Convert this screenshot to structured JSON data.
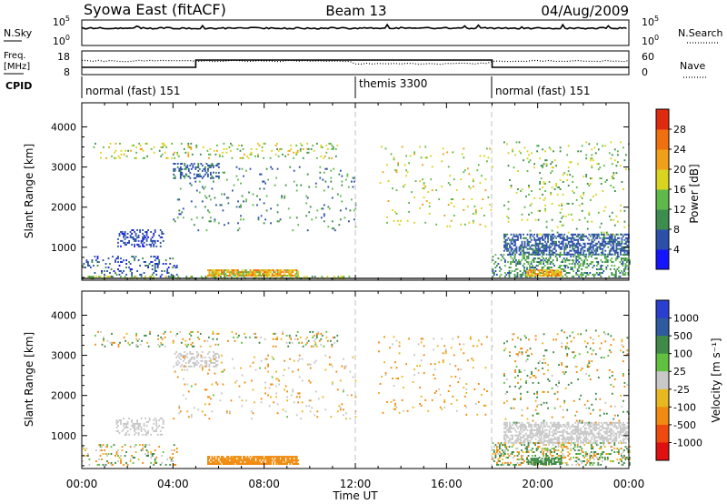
{
  "header": {
    "station": "Syowa East (fitACF)",
    "beam": "Beam 13",
    "date": "04/Aug/2009"
  },
  "nsky_panel": {
    "left_label": "N.Sky",
    "right_label": "N.Search",
    "tick_high": "10^5",
    "tick_low": "10^0",
    "tick_high_base": "10",
    "tick_high_exp": "5",
    "tick_low_base": "10",
    "tick_low_exp": "0"
  },
  "freq_panel": {
    "left_label": "Freq.",
    "unit_label": "[MHz]",
    "right_label": "Nave",
    "left_ticks": [
      "18",
      "8"
    ],
    "right_ticks": [
      "60",
      "0"
    ],
    "cpid_label": "CPID"
  },
  "cpid": [
    {
      "label": "normal (fast) 151",
      "start_hr": 0
    },
    {
      "label": "themis 3300",
      "start_hr": 12
    },
    {
      "label": "normal (fast) 151",
      "start_hr": 18
    }
  ],
  "axes": {
    "ylabel": "Slant Range [km]",
    "yticks": [
      "1000",
      "2000",
      "3000",
      "4000"
    ],
    "xticks": [
      "00:00",
      "04:00",
      "08:00",
      "12:00",
      "16:00",
      "20:00",
      "00:00"
    ],
    "xlabel": "Time UT"
  },
  "power_scale": {
    "label": "Power [dB]",
    "ticks": [
      "4",
      "8",
      "12",
      "16",
      "20",
      "24",
      "28"
    ],
    "colors": [
      "#1414ff",
      "#2c50a8",
      "#3d8d4e",
      "#5fb94a",
      "#d9d420",
      "#f0a018",
      "#f07010",
      "#e02a10"
    ]
  },
  "velocity_scale": {
    "label": "Velocity [m s⁻¹]",
    "ticks": [
      "1000",
      "500",
      "100",
      "25",
      "-25",
      "-100",
      "-500",
      "-1000"
    ],
    "colors": [
      "#2a3fd0",
      "#2e5aa0",
      "#3f8a48",
      "#62c040",
      "#c8c8c8",
      "#e8b820",
      "#f08a10",
      "#ee4a10",
      "#e01010"
    ]
  },
  "chart_data": [
    {
      "type": "heatmap",
      "title": "Power",
      "xlabel": "Time UT",
      "ylabel": "Slant Range [km]",
      "xlim": [
        0,
        24
      ],
      "ylim": [
        180,
        4600
      ],
      "colorbar_label": "Power [dB]",
      "colorbar_range": [
        0,
        32
      ],
      "regions": [
        {
          "t0": 0.0,
          "t1": 4.2,
          "r0": 250,
          "r1": 750,
          "v0": 3,
          "v1": 10,
          "density": 0.18
        },
        {
          "t0": 1.5,
          "t1": 3.6,
          "r0": 1000,
          "r1": 1450,
          "v0": 3,
          "v1": 8,
          "density": 0.3
        },
        {
          "t0": 5.5,
          "t1": 9.5,
          "r0": 270,
          "r1": 430,
          "v0": 14,
          "v1": 28,
          "density": 0.85
        },
        {
          "t0": 4.0,
          "t1": 6.0,
          "r0": 2700,
          "r1": 3100,
          "v0": 4,
          "v1": 9,
          "density": 0.35
        },
        {
          "t0": 0.5,
          "t1": 11.2,
          "r0": 3200,
          "r1": 3600,
          "v0": 10,
          "v1": 22,
          "density": 0.12
        },
        {
          "t0": 4.0,
          "t1": 12.0,
          "r0": 1400,
          "r1": 3000,
          "v0": 4,
          "v1": 16,
          "density": 0.04
        },
        {
          "t0": 0.0,
          "t1": 12.0,
          "r0": 200,
          "r1": 260,
          "v0": 10,
          "v1": 20,
          "density": 0.3
        },
        {
          "t0": 13.0,
          "t1": 18.0,
          "r0": 1500,
          "r1": 3500,
          "v0": 12,
          "v1": 22,
          "density": 0.03
        },
        {
          "t0": 18.5,
          "t1": 24.0,
          "r0": 800,
          "r1": 1300,
          "v0": 4,
          "v1": 9,
          "density": 0.55
        },
        {
          "t0": 18.0,
          "t1": 24.0,
          "r0": 250,
          "r1": 800,
          "v0": 6,
          "v1": 16,
          "density": 0.3
        },
        {
          "t0": 19.5,
          "t1": 21.0,
          "r0": 270,
          "r1": 450,
          "v0": 16,
          "v1": 28,
          "density": 0.8
        },
        {
          "t0": 18.5,
          "t1": 24.0,
          "r0": 1300,
          "r1": 3600,
          "v0": 8,
          "v1": 20,
          "density": 0.05
        }
      ]
    },
    {
      "type": "heatmap",
      "title": "Velocity",
      "xlabel": "Time UT",
      "ylabel": "Slant Range [km]",
      "xlim": [
        0,
        24
      ],
      "ylim": [
        180,
        4600
      ],
      "colorbar_label": "Velocity [m s^-1]",
      "colorbar_range": [
        -1000,
        1000
      ],
      "regions": [
        {
          "t0": 0.0,
          "t1": 4.2,
          "r0": 250,
          "r1": 750,
          "v0": -120,
          "v1": 120,
          "density": 0.15
        },
        {
          "t0": 1.5,
          "t1": 3.6,
          "r0": 1000,
          "r1": 1450,
          "v0": -20,
          "v1": 20,
          "density": 0.3
        },
        {
          "t0": 5.5,
          "t1": 9.5,
          "r0": 270,
          "r1": 480,
          "v0": -150,
          "v1": -60,
          "density": 0.85
        },
        {
          "t0": 4.0,
          "t1": 6.0,
          "r0": 2700,
          "r1": 3100,
          "v0": -20,
          "v1": 20,
          "density": 0.3
        },
        {
          "t0": 0.5,
          "t1": 11.2,
          "r0": 3200,
          "r1": 3600,
          "v0": -150,
          "v1": 150,
          "density": 0.12
        },
        {
          "t0": 4.0,
          "t1": 12.0,
          "r0": 1400,
          "r1": 3000,
          "v0": -120,
          "v1": 30,
          "density": 0.04
        },
        {
          "t0": 13.0,
          "t1": 18.0,
          "r0": 1500,
          "r1": 3500,
          "v0": -120,
          "v1": 0,
          "density": 0.03
        },
        {
          "t0": 18.5,
          "t1": 24.0,
          "r0": 800,
          "r1": 1300,
          "v0": -20,
          "v1": 20,
          "density": 0.55
        },
        {
          "t0": 18.0,
          "t1": 24.0,
          "r0": 250,
          "r1": 800,
          "v0": -120,
          "v1": 150,
          "density": 0.3
        },
        {
          "t0": 19.5,
          "t1": 21.0,
          "r0": 270,
          "r1": 450,
          "v0": 60,
          "v1": 150,
          "density": 0.8
        },
        {
          "t0": 18.5,
          "t1": 24.0,
          "r0": 1300,
          "r1": 3600,
          "v0": -200,
          "v1": 200,
          "density": 0.05
        }
      ]
    }
  ]
}
